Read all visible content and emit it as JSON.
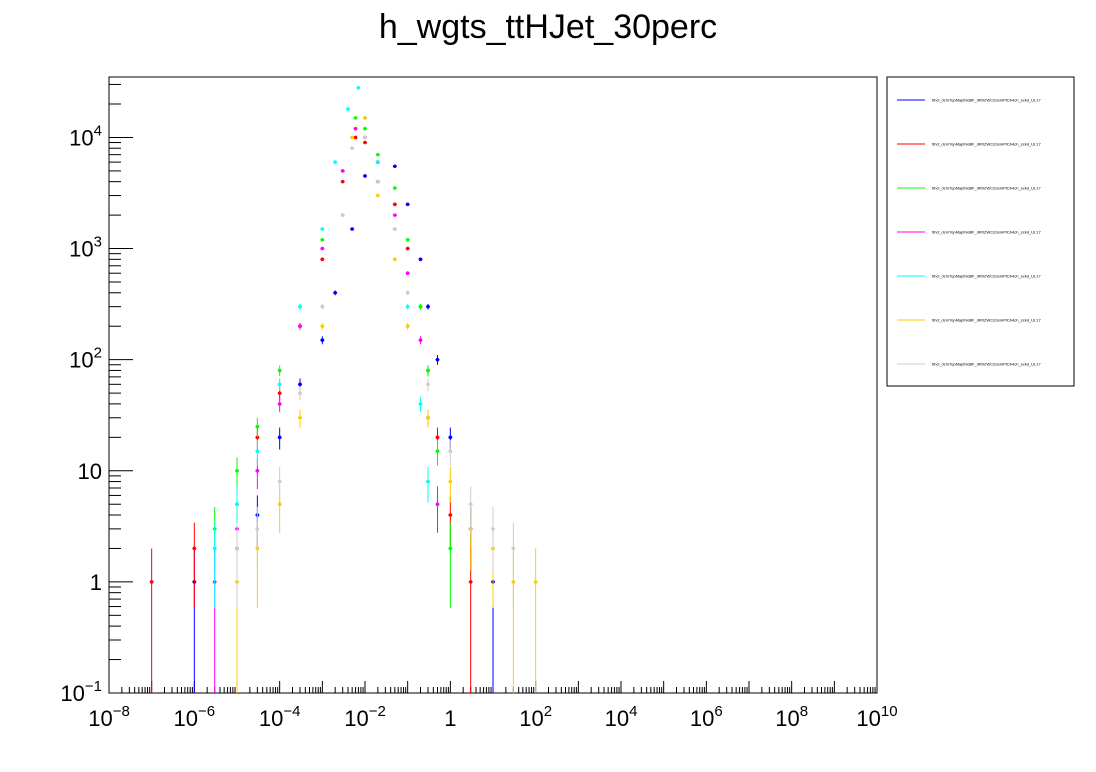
{
  "chart_data": {
    "type": "scatter",
    "title": "h_wgts_ttHJet_30perc",
    "xlabel": "",
    "ylabel": "",
    "x_scale": "log",
    "y_scale": "log",
    "xlim": [
      1e-08,
      10000000000.0
    ],
    "ylim": [
      0.1,
      35000
    ],
    "grid": false,
    "legend_position": "right",
    "x_ticks": [
      {
        "base": "10",
        "exp": "−8"
      },
      {
        "base": "10",
        "exp": "−6"
      },
      {
        "base": "10",
        "exp": "−4"
      },
      {
        "base": "10",
        "exp": "−2"
      },
      {
        "base": "1",
        "exp": ""
      },
      {
        "base": "10",
        "exp": "2"
      },
      {
        "base": "10",
        "exp": "4"
      },
      {
        "base": "10",
        "exp": "6"
      },
      {
        "base": "10",
        "exp": "8"
      },
      {
        "base": "10",
        "exp": "10"
      }
    ],
    "y_ticks": [
      {
        "base": "10",
        "exp": "−1"
      },
      {
        "base": "1",
        "exp": ""
      },
      {
        "base": "10",
        "exp": ""
      },
      {
        "base": "10",
        "exp": "2"
      },
      {
        "base": "10",
        "exp": "3"
      },
      {
        "base": "10",
        "exp": "4"
      }
    ],
    "series": [
      {
        "legend": "tthcl_dcmTopMapthid8F_dR0ZWCsSsmPtCb4ch_sckd_UL17",
        "color": "#0000ff",
        "x": [
          1e-06,
          1e-05,
          3e-05,
          0.0001,
          0.0003,
          0.001,
          0.002,
          0.005,
          0.01,
          0.02,
          0.05,
          0.1,
          0.2,
          0.3,
          0.5,
          1,
          3,
          10
        ],
        "y": [
          1,
          2,
          4,
          20,
          60,
          150,
          400,
          1500,
          4500,
          4000,
          5500,
          2500,
          800,
          300,
          100,
          20,
          3,
          1
        ]
      },
      {
        "legend": "tthcl_dcmTopMapthid8F_dR0ZWCsSsmPtCb4ch_sckd_UL17",
        "color": "#ff0000",
        "x": [
          1e-07,
          1e-06,
          1e-05,
          3e-05,
          0.0001,
          0.0003,
          0.001,
          0.003,
          0.006,
          0.01,
          0.02,
          0.05,
          0.1,
          0.2,
          0.3,
          0.5,
          1,
          3
        ],
        "y": [
          1,
          2,
          5,
          20,
          50,
          200,
          800,
          4000,
          10000,
          9000,
          6000,
          2500,
          1000,
          300,
          80,
          20,
          4,
          1
        ]
      },
      {
        "legend": "tthcl_dcmTopMapthid8F_dR0ZWCsSsmPtCb4ch_sckd_UL17",
        "color": "#00ff00",
        "x": [
          3e-06,
          1e-05,
          3e-05,
          0.0001,
          0.0003,
          0.001,
          0.003,
          0.006,
          0.01,
          0.02,
          0.05,
          0.1,
          0.2,
          0.3,
          0.5,
          1
        ],
        "y": [
          3,
          10,
          25,
          80,
          300,
          1200,
          5000,
          15000,
          12000,
          7000,
          3500,
          1200,
          300,
          80,
          15,
          2
        ]
      },
      {
        "legend": "tthcl_dcmTopMapthid8F_dR0ZWCsSsmPtCb4ch_sckd_UL17",
        "color": "#ff00ff",
        "x": [
          3e-06,
          1e-05,
          3e-05,
          0.0001,
          0.0003,
          0.001,
          0.003,
          0.006,
          0.01,
          0.02,
          0.05,
          0.1,
          0.2,
          0.3,
          0.5
        ],
        "y": [
          1,
          3,
          10,
          40,
          200,
          1000,
          5000,
          12000,
          10000,
          6000,
          2000,
          600,
          150,
          30,
          5
        ]
      },
      {
        "legend": "tthcl_dcmTopMapthid8F_dR0ZWCsSsmPtCb4ch_sckd_UL17",
        "color": "#00ffff",
        "x": [
          3e-06,
          1e-05,
          3e-05,
          0.0001,
          0.0003,
          0.001,
          0.002,
          0.004,
          0.007,
          0.01,
          0.02,
          0.05,
          0.1,
          0.2,
          0.3
        ],
        "y": [
          2,
          5,
          15,
          60,
          300,
          1500,
          6000,
          18000,
          28000,
          15000,
          6000,
          1500,
          300,
          40,
          8
        ]
      },
      {
        "legend": "tthcl_dcmTopMapthid8F_dR0ZWCsSsmPtCb4ch_sckd_UL17",
        "color": "#ffcc00",
        "x": [
          1e-05,
          3e-05,
          0.0001,
          0.0003,
          0.001,
          0.003,
          0.005,
          0.01,
          0.02,
          0.05,
          0.1,
          0.3,
          1,
          3,
          10,
          30,
          100
        ],
        "y": [
          1,
          2,
          5,
          30,
          200,
          2000,
          10000,
          15000,
          3000,
          800,
          200,
          30,
          8,
          3,
          2,
          1,
          1
        ]
      },
      {
        "legend": "tthcl_dcmTopMapthid8F_dR0ZWCsSsmPtCb4ch_sckd_UL17",
        "color": "#cccccc",
        "x": [
          1e-05,
          3e-05,
          0.0001,
          0.0003,
          0.001,
          0.003,
          0.005,
          0.01,
          0.02,
          0.05,
          0.1,
          0.3,
          1,
          3,
          10,
          30
        ],
        "y": [
          2,
          3,
          8,
          50,
          300,
          2000,
          8000,
          10000,
          4000,
          1500,
          400,
          60,
          15,
          5,
          3,
          2
        ]
      }
    ]
  }
}
